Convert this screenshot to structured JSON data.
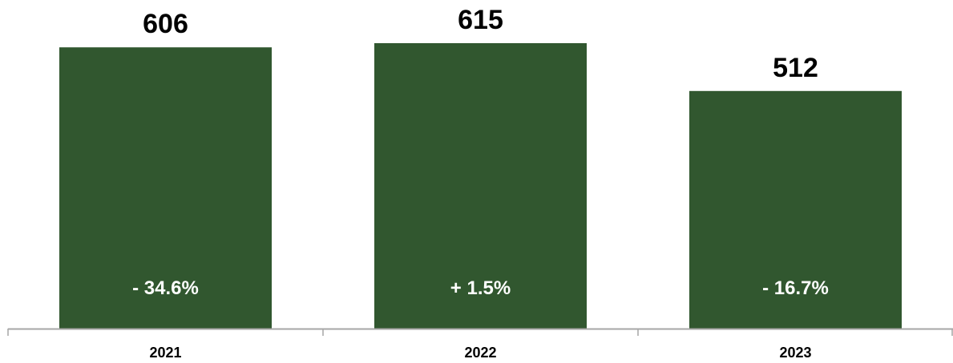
{
  "chart_data": {
    "type": "bar",
    "title": "",
    "xlabel": "",
    "ylabel": "",
    "categories": [
      "2021",
      "2022",
      "2023"
    ],
    "values": [
      606,
      615,
      512
    ],
    "value_labels": [
      "606",
      "615",
      "512"
    ],
    "change_labels": [
      "- 34.6%",
      "+ 1.5%",
      "- 16.7%"
    ],
    "ylim": [
      0,
      615
    ],
    "grid": false,
    "legend": "none",
    "bar_color": "#31572f",
    "axis_color": "#a6a6a6"
  }
}
